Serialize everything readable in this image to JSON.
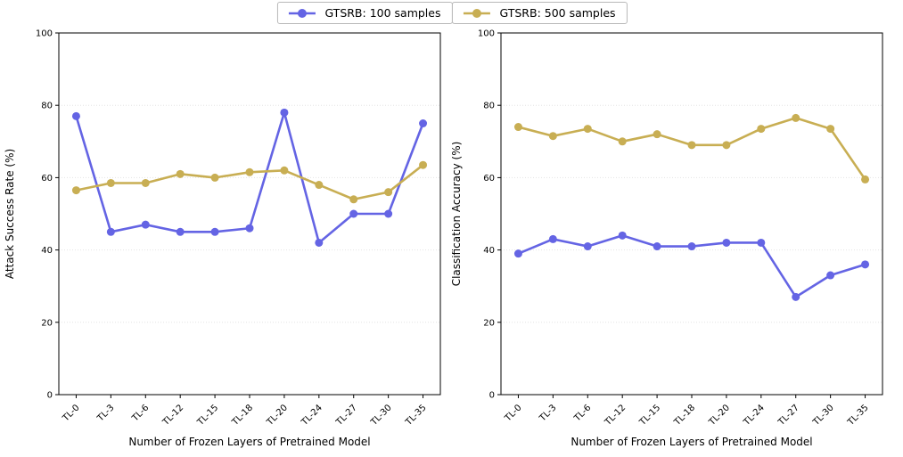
{
  "legend": {
    "items": [
      {
        "label": "GTSRB: 100 samples",
        "color": "#6464e4"
      },
      {
        "label": "GTSRB: 500 samples",
        "color": "#c8ae53"
      }
    ]
  },
  "chart_data": [
    {
      "type": "line",
      "xlabel": "Number of Frozen Layers of Pretrained Model",
      "ylabel": "Attack Success Rate (%)",
      "categories": [
        "TL-0",
        "TL-3",
        "TL-6",
        "TL-12",
        "TL-15",
        "TL-18",
        "TL-20",
        "TL-24",
        "TL-27",
        "TL-30",
        "TL-35"
      ],
      "ylim": [
        0,
        100
      ],
      "yticks": [
        0,
        20,
        40,
        60,
        80,
        100
      ],
      "grid": true,
      "legend_position": "top-center",
      "series": [
        {
          "name": "GTSRB: 100 samples",
          "color": "#6464e4",
          "values": [
            77,
            45,
            47,
            45,
            45,
            46,
            78,
            42,
            50,
            50,
            75
          ]
        },
        {
          "name": "GTSRB: 500 samples",
          "color": "#c8ae53",
          "values": [
            56.5,
            58.5,
            58.5,
            61,
            60,
            61.5,
            62,
            58,
            54,
            56,
            63.5
          ]
        }
      ]
    },
    {
      "type": "line",
      "xlabel": "Number of Frozen Layers of Pretrained Model",
      "ylabel": "Classification Accuracy (%)",
      "categories": [
        "TL-0",
        "TL-3",
        "TL-6",
        "TL-12",
        "TL-15",
        "TL-18",
        "TL-20",
        "TL-24",
        "TL-27",
        "TL-30",
        "TL-35"
      ],
      "ylim": [
        0,
        100
      ],
      "yticks": [
        0,
        20,
        40,
        60,
        80,
        100
      ],
      "grid": true,
      "legend_position": "top-center",
      "series": [
        {
          "name": "GTSRB: 100 samples",
          "color": "#6464e4",
          "values": [
            39,
            43,
            41,
            44,
            41,
            41,
            42,
            42,
            27,
            33,
            36
          ]
        },
        {
          "name": "GTSRB: 500 samples",
          "color": "#c8ae53",
          "values": [
            74,
            71.5,
            73.5,
            70,
            72,
            69,
            69,
            73.5,
            76.5,
            73.5,
            59.5
          ]
        }
      ]
    }
  ]
}
